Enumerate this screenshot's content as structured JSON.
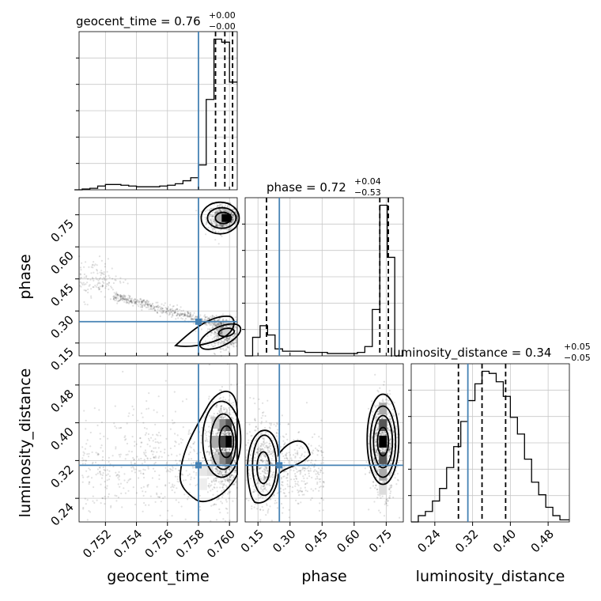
{
  "chart_data": {
    "type": "corner",
    "parameters": [
      "geocent_time",
      "phase",
      "luminosity_distance"
    ],
    "truths": {
      "geocent_time": 0.758,
      "phase": 0.25,
      "luminosity_distance": 0.31
    },
    "colors": {
      "truth": "#4682b4",
      "histogram": "#000000",
      "grid": "#c8c8c8"
    },
    "titles": [
      {
        "param": "geocent_time",
        "prefix": "geocent_time = ",
        "value": "0.76",
        "upper": "+0.00",
        "lower": "−0.00"
      },
      {
        "param": "phase",
        "prefix": "phase = ",
        "value": "0.72",
        "upper": "+0.04",
        "lower": "−0.53"
      },
      {
        "param": "luminosity_distance",
        "prefix": "luminosity_distance = ",
        "value": "0.34",
        "upper": "+0.05",
        "lower": "−0.05"
      }
    ],
    "axes": {
      "geocent_time": {
        "label": "geocent_time",
        "range": [
          0.7503,
          0.7605
        ],
        "ticks": [
          0.752,
          0.754,
          0.756,
          0.758,
          0.76
        ],
        "tick_labels": [
          "0.752",
          "0.754",
          "0.756",
          "0.758",
          "0.760"
        ]
      },
      "phase": {
        "label": "phase",
        "range": [
          0.09,
          0.83
        ],
        "ticks": [
          0.15,
          0.3,
          0.45,
          0.6,
          0.75
        ],
        "tick_labels": [
          "0.15",
          "0.30",
          "0.45",
          "0.60",
          "0.75"
        ]
      },
      "luminosity_distance": {
        "label": "luminosity_distance",
        "range": [
          0.19,
          0.525
        ],
        "ticks": [
          0.24,
          0.32,
          0.4,
          0.48
        ],
        "tick_labels": [
          "0.24",
          "0.32",
          "0.40",
          "0.48"
        ]
      }
    },
    "histograms": {
      "geocent_time": {
        "bins": [
          0.75,
          0.7505,
          0.751,
          0.7515,
          0.752,
          0.7525,
          0.753,
          0.7535,
          0.754,
          0.7545,
          0.755,
          0.7555,
          0.756,
          0.7565,
          0.757,
          0.7575,
          0.758,
          0.7585,
          0.759,
          0.7595,
          0.76,
          0.7605
        ],
        "counts": [
          0,
          1,
          2,
          5,
          7,
          7,
          6,
          5,
          4,
          4,
          4,
          5,
          6,
          8,
          12,
          16,
          33,
          120,
          200,
          196,
          143
        ],
        "quantiles": [
          0.7591,
          0.7597,
          0.7602
        ]
      },
      "phase": {
        "bins": [
          0.09,
          0.125,
          0.16,
          0.195,
          0.23,
          0.265,
          0.3,
          0.335,
          0.37,
          0.405,
          0.44,
          0.475,
          0.51,
          0.545,
          0.58,
          0.615,
          0.65,
          0.685,
          0.72,
          0.755,
          0.79,
          0.83
        ],
        "counts": [
          0,
          16,
          26,
          18,
          6,
          4,
          4,
          4,
          3,
          3,
          3,
          2,
          2,
          2,
          2,
          3,
          8,
          40,
          130,
          85,
          0
        ],
        "quantiles": [
          0.19,
          0.72,
          0.76
        ]
      },
      "luminosity_distance": {
        "bins": [
          0.19,
          0.205,
          0.22,
          0.235,
          0.25,
          0.265,
          0.28,
          0.295,
          0.31,
          0.325,
          0.34,
          0.355,
          0.37,
          0.385,
          0.4,
          0.415,
          0.43,
          0.445,
          0.46,
          0.475,
          0.49,
          0.505,
          0.525
        ],
        "counts": [
          0,
          3,
          5,
          10,
          16,
          26,
          36,
          48,
          58,
          66,
          72,
          71,
          67,
          60,
          50,
          42,
          30,
          19,
          13,
          7,
          3,
          1
        ],
        "quantiles": [
          0.29,
          0.34,
          0.39
        ]
      }
    }
  }
}
